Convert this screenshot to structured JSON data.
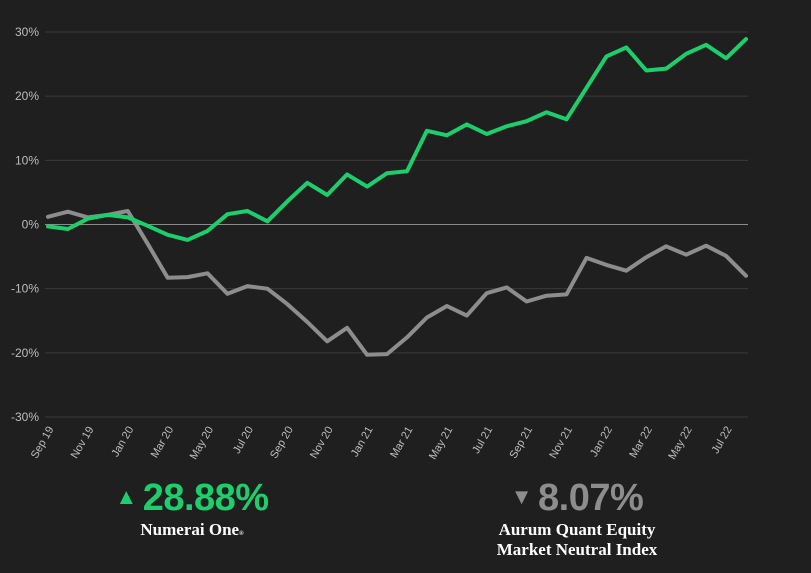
{
  "chart_data": {
    "type": "line",
    "x": [
      "Sep 19",
      "Oct 19",
      "Nov 19",
      "Dec 19",
      "Jan 20",
      "Feb 20",
      "Mar 20",
      "Apr 20",
      "May 20",
      "Jun 20",
      "Jul 20",
      "Aug 20",
      "Sep 20",
      "Oct 20",
      "Nov 20",
      "Dec 20",
      "Jan 21",
      "Feb 21",
      "Mar 21",
      "Apr 21",
      "May 21",
      "Jun 21",
      "Jul 21",
      "Aug 21",
      "Sep 21",
      "Oct 21",
      "Nov 21",
      "Dec 21",
      "Jan 22",
      "Feb 22",
      "Mar 22",
      "Apr 22",
      "May 22",
      "Jun 22",
      "Jul 22",
      "Aug 22"
    ],
    "x_tick_labels": [
      "Sep 19",
      "Nov 19",
      "Jan 20",
      "Mar 20",
      "May 20",
      "Jul 20",
      "Sep 20",
      "Nov 20",
      "Jan 21",
      "Mar 21",
      "May 21",
      "Jul 21",
      "Sep 21",
      "Nov 21",
      "Jan 22",
      "Mar 22",
      "May 22",
      "Jul 22"
    ],
    "y_tick_labels": [
      "30%",
      "20%",
      "10%",
      "0%",
      "-10%",
      "-20%",
      "-30%"
    ],
    "ylim": [
      -30,
      30
    ],
    "grid": true,
    "series": [
      {
        "name": "Numerai One",
        "color": "#1ccf6c",
        "values": [
          -0.3,
          -0.7,
          0.9,
          1.5,
          1.1,
          -0.2,
          -1.6,
          -2.4,
          -1.0,
          1.6,
          2.1,
          0.5,
          3.6,
          6.5,
          4.6,
          7.8,
          5.9,
          8.0,
          8.3,
          14.6,
          13.9,
          15.6,
          14.1,
          15.3,
          16.1,
          17.5,
          16.4,
          21.3,
          26.2,
          27.6,
          24.0,
          24.3,
          26.6,
          28.0,
          25.9,
          28.9
        ]
      },
      {
        "name": "Aurum Quant Equity Market Neutral Index",
        "color": "#8d8d8d",
        "values": [
          1.2,
          2.0,
          1.1,
          1.5,
          2.1,
          -3.0,
          -8.3,
          -8.2,
          -7.6,
          -10.8,
          -9.6,
          -10.0,
          -12.4,
          -15.2,
          -18.2,
          -16.1,
          -20.3,
          -20.2,
          -17.6,
          -14.5,
          -12.7,
          -14.2,
          -10.7,
          -9.8,
          -12.0,
          -11.1,
          -10.9,
          -5.2,
          -6.3,
          -7.2,
          -5.1,
          -3.4,
          -4.7,
          -3.3,
          -4.9,
          -8.0
        ]
      }
    ]
  },
  "stats": {
    "a": {
      "arrow": "▲",
      "value": "28.88%",
      "label": "Numerai One",
      "reg": "®",
      "color": "#1ccf6c"
    },
    "b": {
      "arrow": "▼",
      "value": "8.07%",
      "label_line1": "Aurum Quant Equity",
      "label_line2": "Market Neutral Index",
      "color": "#8d8d8d"
    }
  }
}
